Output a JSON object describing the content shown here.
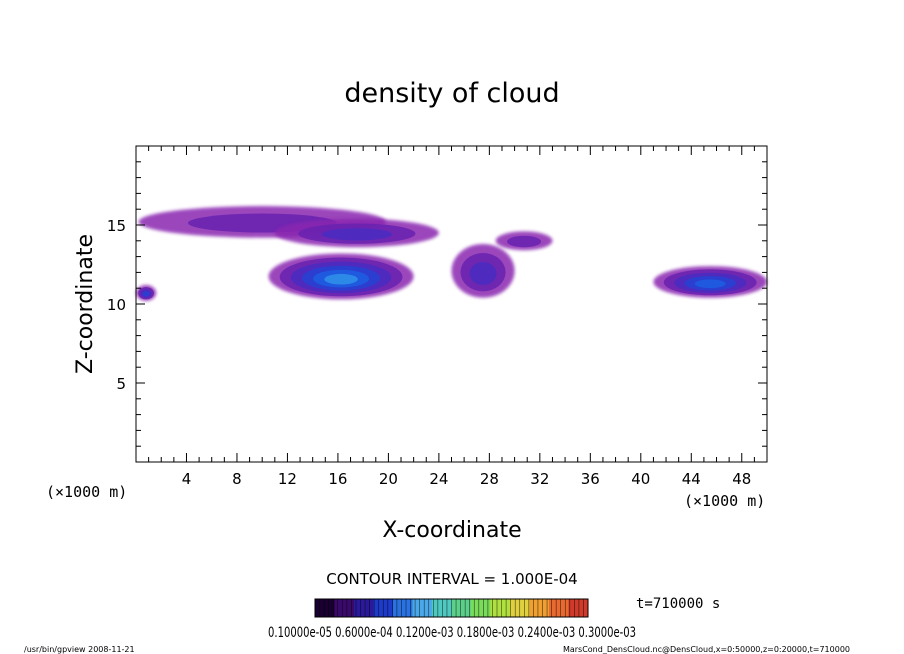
{
  "chart_data": {
    "type": "heatmap",
    "title": "density of cloud",
    "xlabel": "X-coordinate",
    "ylabel": "Z-coordinate",
    "x_unit_left": "(×1000 m)",
    "x_unit_right": "(×1000 m)",
    "xlim": [
      0,
      50
    ],
    "ylim": [
      0,
      20
    ],
    "xticks": [
      4,
      8,
      12,
      16,
      20,
      24,
      28,
      32,
      36,
      40,
      44,
      48
    ],
    "yticks": [
      5,
      10,
      15
    ],
    "contour_interval": "CONTOUR INTERVAL = 1.000E-04",
    "time_label": "t=710000 s",
    "colorbar_labels": "0.10000e-05 0.6000e-04 0.1200e-03 0.1800e-03 0.2400e-03 0.3000e-03",
    "colorbar_colors": [
      "#1a0030",
      "#3a0a6a",
      "#2a1a9a",
      "#1d3bc8",
      "#2a72e0",
      "#4aa8e8",
      "#4fc8c0",
      "#5cd08a",
      "#7adc5a",
      "#b0e040",
      "#e0d040",
      "#f0a030",
      "#e86a30",
      "#d03a2a"
    ],
    "clouds": [
      {
        "name": "cloud-upper-band",
        "x": [
          0.2,
          19.8
        ],
        "z": [
          14.2,
          16.2
        ],
        "level": 0.15
      },
      {
        "name": "cloud-upper-mid",
        "x": [
          11.0,
          24.0
        ],
        "z": [
          13.6,
          15.4
        ],
        "level": 0.25
      },
      {
        "name": "cloud-left-edge",
        "x": [
          0.0,
          1.6
        ],
        "z": [
          10.2,
          11.2
        ],
        "level": 0.35
      },
      {
        "name": "cloud-main-core",
        "x": [
          10.5,
          22.0
        ],
        "z": [
          10.3,
          13.2
        ],
        "level": 0.55
      },
      {
        "name": "cloud-right-mid",
        "x": [
          25.0,
          30.0
        ],
        "z": [
          10.4,
          13.8
        ],
        "level": 0.2
      },
      {
        "name": "cloud-right-top",
        "x": [
          28.5,
          33.0
        ],
        "z": [
          13.4,
          14.6
        ],
        "level": 0.12
      },
      {
        "name": "cloud-far-right",
        "x": [
          41.0,
          50.0
        ],
        "z": [
          10.4,
          12.4
        ],
        "level": 0.45
      }
    ],
    "footer_left": "/usr/bin/gpview   2008-11-21",
    "footer_right": "MarsCond_DensCloud.nc@DensCloud,x=0:50000,z=0:20000,t=710000"
  }
}
